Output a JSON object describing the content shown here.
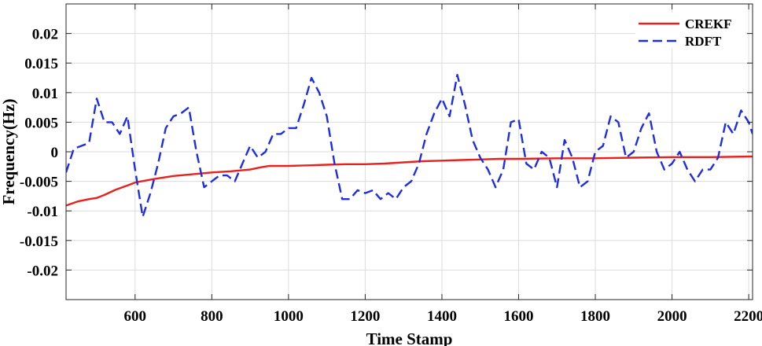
{
  "chart_data": {
    "type": "line",
    "title": "",
    "xlabel": "Time Stamp",
    "ylabel": "Frequency(Hz)",
    "xlim": [
      420,
      2210
    ],
    "ylim": [
      -0.025,
      0.025
    ],
    "x_ticks": [
      600,
      800,
      1000,
      1200,
      1400,
      1600,
      1800,
      2000,
      2200
    ],
    "x_tick_labels": [
      "600",
      "800",
      "1000",
      "1200",
      "1400",
      "1600",
      "1800",
      "2000",
      "2200"
    ],
    "y_ticks": [
      -0.02,
      -0.015,
      -0.01,
      -0.005,
      0,
      0.005,
      0.01,
      0.015,
      0.02
    ],
    "y_tick_labels": [
      "-0.02",
      "-0.015",
      "-0.01",
      "-0.005",
      "0",
      "0.005",
      "0.01",
      "0.015",
      "0.02"
    ],
    "grid": true,
    "legend_position": "top-right",
    "series": [
      {
        "name": "CREKF",
        "color": "#e8201e",
        "style": "solid",
        "x": [
          420,
          450,
          480,
          500,
          520,
          550,
          580,
          600,
          650,
          700,
          750,
          800,
          850,
          900,
          930,
          950,
          1000,
          1050,
          1100,
          1150,
          1200,
          1250,
          1300,
          1350,
          1400,
          1450,
          1500,
          1550,
          1600,
          1700,
          1800,
          1900,
          2000,
          2100,
          2210
        ],
        "y": [
          -0.0091,
          -0.0084,
          -0.008,
          -0.0078,
          -0.0073,
          -0.0064,
          -0.0057,
          -0.0052,
          -0.0046,
          -0.0041,
          -0.0038,
          -0.0035,
          -0.0033,
          -0.003,
          -0.0026,
          -0.0024,
          -0.0024,
          -0.0023,
          -0.0022,
          -0.0021,
          -0.0021,
          -0.002,
          -0.0018,
          -0.0016,
          -0.0015,
          -0.0014,
          -0.0013,
          -0.0012,
          -0.0012,
          -0.0011,
          -0.0011,
          -0.001,
          -0.0009,
          -0.0009,
          -0.0008
        ]
      },
      {
        "name": "RDFT",
        "color": "#1f2de0",
        "style": "dashed",
        "x": [
          420,
          440,
          460,
          480,
          500,
          520,
          540,
          560,
          580,
          600,
          620,
          640,
          660,
          680,
          700,
          720,
          740,
          760,
          780,
          800,
          820,
          840,
          860,
          880,
          900,
          920,
          940,
          960,
          980,
          1000,
          1020,
          1040,
          1060,
          1080,
          1100,
          1120,
          1140,
          1160,
          1180,
          1200,
          1220,
          1240,
          1260,
          1280,
          1300,
          1320,
          1340,
          1360,
          1380,
          1400,
          1420,
          1440,
          1460,
          1480,
          1500,
          1520,
          1540,
          1560,
          1580,
          1600,
          1620,
          1640,
          1660,
          1680,
          1700,
          1720,
          1740,
          1760,
          1780,
          1800,
          1820,
          1840,
          1860,
          1880,
          1900,
          1920,
          1940,
          1960,
          1980,
          2000,
          2020,
          2040,
          2060,
          2080,
          2100,
          2120,
          2140,
          2160,
          2180,
          2200,
          2210
        ],
        "y": [
          -0.0035,
          0.0005,
          0.001,
          0.0015,
          0.009,
          0.005,
          0.005,
          0.003,
          0.006,
          -0.003,
          -0.011,
          -0.007,
          -0.002,
          0.004,
          0.006,
          0.0065,
          0.0075,
          0.0,
          -0.006,
          -0.005,
          -0.004,
          -0.004,
          -0.005,
          -0.002,
          0.001,
          -0.001,
          0.0,
          0.003,
          0.003,
          0.004,
          0.004,
          0.008,
          0.0125,
          0.01,
          0.006,
          -0.002,
          -0.008,
          -0.008,
          -0.0065,
          -0.007,
          -0.0065,
          -0.008,
          -0.007,
          -0.008,
          -0.006,
          -0.005,
          -0.002,
          0.003,
          0.0065,
          0.009,
          0.006,
          0.013,
          0.008,
          0.002,
          -0.001,
          -0.003,
          -0.006,
          -0.003,
          0.005,
          0.0055,
          -0.002,
          -0.003,
          0.0,
          -0.001,
          -0.006,
          0.002,
          -0.001,
          -0.006,
          -0.005,
          0.0,
          0.001,
          0.006,
          0.005,
          -0.001,
          0.0,
          0.004,
          0.0065,
          0.0,
          -0.003,
          -0.002,
          0.0,
          -0.003,
          -0.005,
          -0.003,
          -0.003,
          -0.001,
          0.005,
          0.003,
          0.007,
          0.005,
          0.003
        ]
      }
    ]
  }
}
